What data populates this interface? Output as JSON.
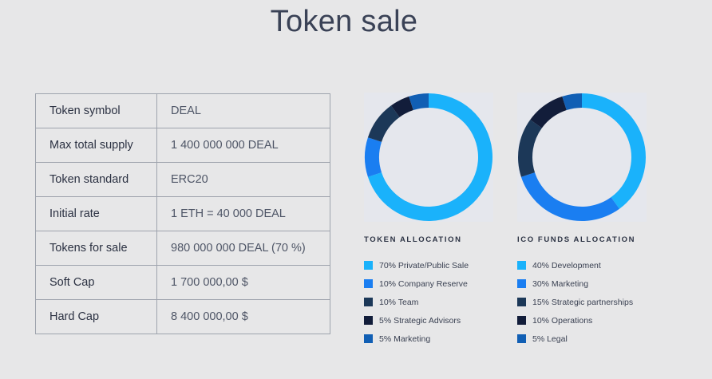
{
  "page": {
    "title": "Token sale"
  },
  "specs": [
    {
      "key": "Token symbol",
      "value": "DEAL"
    },
    {
      "key": "Max total supply",
      "value": "1 400 000 000 DEAL"
    },
    {
      "key": "Token standard",
      "value": "ERC20"
    },
    {
      "key": "Initial rate",
      "value": "1 ETH = 40 000 DEAL"
    },
    {
      "key": "Tokens for sale",
      "value": "980 000 000 DEAL (70 %)"
    },
    {
      "key": "Soft Cap",
      "value": "1 700 000,00 $"
    },
    {
      "key": "Hard Cap",
      "value": "8 400 000,00 $"
    }
  ],
  "chart_data": [
    {
      "type": "pie",
      "title": "TOKEN ALLOCATION",
      "categories": [
        "70% Private/Public Sale",
        "10% Company Reserve",
        "10% Team",
        "5% Strategic Advisors",
        "5% Marketing"
      ],
      "values": [
        70,
        10,
        10,
        5,
        5
      ],
      "colors": [
        "#1ab2fb",
        "#1a7ef1",
        "#1c3858",
        "#121d3a",
        "#115fb4"
      ]
    },
    {
      "type": "pie",
      "title": "ICO FUNDS ALLOCATION",
      "categories": [
        "40% Development",
        "30% Marketing",
        "15% Strategic partnerships",
        "10% Operations",
        "5% Legal"
      ],
      "values": [
        40,
        30,
        15,
        10,
        5
      ],
      "colors": [
        "#1ab2fb",
        "#1a7ef1",
        "#1c3858",
        "#121d3a",
        "#115fb4"
      ]
    }
  ]
}
